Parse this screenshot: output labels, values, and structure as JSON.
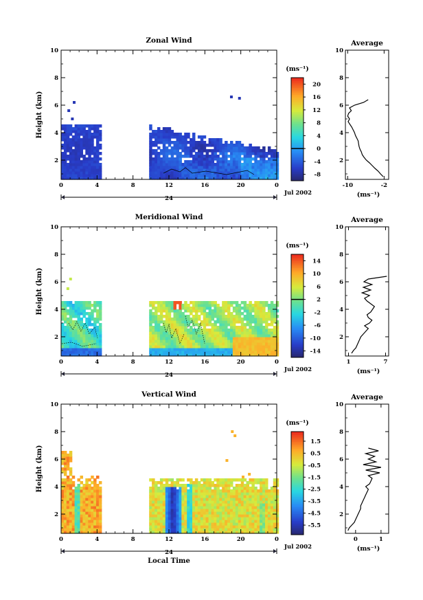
{
  "chart_data": [
    {
      "type": "heatmap",
      "title": "Zonal Wind",
      "ylabel": "Height (km)",
      "xlabel": "",
      "x_ticks": [
        "0",
        "4",
        "8",
        "12",
        "16",
        "20",
        "0"
      ],
      "y_ticks": [
        "2",
        "4",
        "6",
        "8",
        "10"
      ],
      "xlim": [
        0,
        24
      ],
      "ylim": [
        0.6,
        10
      ],
      "date_tick": "24",
      "date_label": "Jul 2002",
      "colorbar": {
        "unit": "(ms⁻¹)",
        "ticks": [
          "20",
          "16",
          "12",
          "8",
          "4",
          "0",
          "-4",
          "-8"
        ],
        "range": [
          -10,
          22
        ],
        "marked_level": 0
      },
      "data_blocks": [
        {
          "x": [
            0,
            4.4
          ],
          "y": [
            0.6,
            4.5
          ],
          "value_range": [
            -7,
            -5
          ]
        },
        {
          "x": [
            9.8,
            24
          ],
          "y": [
            0.6,
            4.5
          ],
          "value_range": [
            -9,
            -2
          ]
        }
      ],
      "profile": {
        "title": "Average",
        "xlabel": "(ms⁻¹)",
        "x_ticks": [
          "-10",
          "-2"
        ],
        "xlim": [
          -10.5,
          -1
        ],
        "y_ticks": [
          "2",
          "4",
          "6",
          "8",
          "10"
        ],
        "height": [
          0.8,
          1.0,
          1.2,
          1.4,
          1.6,
          1.8,
          2.0,
          2.2,
          2.4,
          2.6,
          2.8,
          3.0,
          3.2,
          3.4,
          3.6,
          3.8,
          4.0,
          4.2,
          4.4,
          4.6,
          4.8,
          5.0,
          5.2,
          5.4,
          5.6,
          5.8,
          6.0,
          6.2,
          6.4
        ],
        "wind": [
          -2.2,
          -2.8,
          -3.3,
          -4.0,
          -4.6,
          -5.2,
          -5.9,
          -6.4,
          -6.8,
          -7.0,
          -7.3,
          -7.5,
          -7.6,
          -7.7,
          -8.0,
          -8.3,
          -8.5,
          -8.8,
          -9.1,
          -9.5,
          -9.9,
          -9.6,
          -10.0,
          -9.8,
          -9.2,
          -9.6,
          -8.5,
          -6.5,
          -5.5
        ]
      }
    },
    {
      "type": "heatmap",
      "title": "Meridional Wind",
      "ylabel": "Height (km)",
      "xlabel": "",
      "x_ticks": [
        "0",
        "4",
        "8",
        "12",
        "16",
        "20",
        "0"
      ],
      "y_ticks": [
        "2",
        "4",
        "6",
        "8",
        "10"
      ],
      "xlim": [
        0,
        24
      ],
      "ylim": [
        0.6,
        10
      ],
      "date_tick": "24",
      "date_label": "Jul 2002",
      "colorbar": {
        "unit": "(ms⁻¹)",
        "ticks": [
          "14",
          "10",
          "6",
          "2",
          "-2",
          "-6",
          "-10",
          "-14"
        ],
        "range": [
          -16,
          16
        ],
        "marked_level": 2
      },
      "data_blocks": [
        {
          "x": [
            0,
            4.4
          ],
          "y": [
            0.6,
            4.5
          ],
          "value_range": [
            -6,
            4
          ]
        },
        {
          "x": [
            9.8,
            24
          ],
          "y": [
            0.6,
            4.5
          ],
          "value_range": [
            -2,
            8
          ]
        }
      ],
      "profile": {
        "title": "Average",
        "xlabel": "(ms⁻¹)",
        "x_ticks": [
          "1",
          "7"
        ],
        "xlim": [
          0.5,
          7.5
        ],
        "y_ticks": [
          "2",
          "4",
          "6",
          "8",
          "10"
        ],
        "height": [
          0.8,
          1.0,
          1.2,
          1.4,
          1.6,
          1.8,
          2.0,
          2.2,
          2.4,
          2.6,
          2.8,
          3.0,
          3.2,
          3.4,
          3.6,
          3.8,
          4.0,
          4.2,
          4.4,
          4.6,
          4.8,
          5.0,
          5.2,
          5.4,
          5.6,
          5.8,
          6.0,
          6.2,
          6.4
        ],
        "wind": [
          1.5,
          1.8,
          2.2,
          2.4,
          2.6,
          2.8,
          3.0,
          3.4,
          3.8,
          4.2,
          3.6,
          4.4,
          4.8,
          4.2,
          4.0,
          4.6,
          4.9,
          5.2,
          4.6,
          4.0,
          3.6,
          4.4,
          3.2,
          4.6,
          3.4,
          4.8,
          3.5,
          4.2,
          7.2
        ]
      }
    },
    {
      "type": "heatmap",
      "title": "Vertical Wind",
      "ylabel": "Height (km)",
      "xlabel": "Local Time",
      "x_ticks": [
        "0",
        "4",
        "8",
        "12",
        "16",
        "20",
        "0"
      ],
      "y_ticks": [
        "2",
        "4",
        "6",
        "8",
        "10"
      ],
      "xlim": [
        0,
        24
      ],
      "ylim": [
        0.6,
        10
      ],
      "date_tick": "24",
      "date_label": "Jul 2002",
      "colorbar": {
        "unit": "(ms⁻¹)",
        "ticks": [
          "1.5",
          "0.5",
          "-0.5",
          "-1.5",
          "-2.5",
          "-3.5",
          "-4.5",
          "-5.5"
        ],
        "range": [
          -6.3,
          2.3
        ]
      },
      "data_blocks": [
        {
          "x": [
            0,
            4.4
          ],
          "y": [
            0.6,
            6.6
          ],
          "value_range": [
            -1,
            1
          ]
        },
        {
          "x": [
            9.8,
            24
          ],
          "y": [
            0.6,
            4.6
          ],
          "value_range": [
            -6,
            1
          ]
        }
      ],
      "profile": {
        "title": "Average",
        "xlabel": "(ms⁻¹)",
        "x_ticks": [
          "0",
          "1"
        ],
        "xlim": [
          -0.4,
          1.3
        ],
        "y_ticks": [
          "2",
          "4",
          "6",
          "8",
          "10"
        ],
        "height": [
          0.8,
          1.0,
          1.2,
          1.4,
          1.6,
          1.8,
          2.0,
          2.2,
          2.4,
          2.6,
          2.8,
          3.0,
          3.2,
          3.4,
          3.6,
          3.8,
          4.0,
          4.2,
          4.4,
          4.6,
          4.8,
          5.0,
          5.2,
          5.4,
          5.6,
          5.8,
          6.0,
          6.2,
          6.4,
          6.6,
          6.8
        ],
        "wind": [
          -0.3,
          -0.25,
          -0.15,
          -0.05,
          0.0,
          0.05,
          0.1,
          0.15,
          0.2,
          0.2,
          0.25,
          0.3,
          0.35,
          0.4,
          0.45,
          0.5,
          0.4,
          0.55,
          0.6,
          0.65,
          0.5,
          0.95,
          0.4,
          1.0,
          0.3,
          0.8,
          0.5,
          0.75,
          0.4,
          0.9,
          0.5
        ]
      }
    }
  ]
}
